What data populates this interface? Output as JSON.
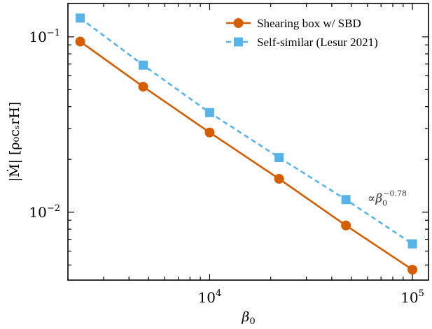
{
  "chart_data": {
    "type": "line",
    "xlabel": {
      "main": "β",
      "sub": "0"
    },
    "ylabel": "|Ṁ| [ρ₀cₛrH]",
    "xscale": "log",
    "yscale": "log",
    "xlim": [
      2000,
      120000
    ],
    "ylim": [
      0.0041,
      0.155
    ],
    "grid": false,
    "legend_position": "top-right",
    "x_ticks": [
      {
        "value": 10000,
        "base": "10",
        "exp": "4"
      },
      {
        "value": 100000,
        "base": "10",
        "exp": "5"
      }
    ],
    "y_ticks": [
      {
        "value": 0.01,
        "base": "10",
        "exp": "−2"
      },
      {
        "value": 0.1,
        "base": "10",
        "exp": "−1"
      }
    ],
    "series": [
      {
        "name": "Shearing box w/ SBD",
        "color": "#d55e00",
        "linestyle": "solid",
        "marker": "circle",
        "x": [
          2300,
          4700,
          10000,
          22000,
          47000,
          100000
        ],
        "y": [
          0.094,
          0.052,
          0.0285,
          0.0155,
          0.0084,
          0.0047
        ]
      },
      {
        "name": "Self-similar (Lesur 2021)",
        "color": "#56b4e9",
        "linestyle": "dashed",
        "marker": "square",
        "x": [
          2300,
          4700,
          10000,
          22000,
          47000,
          100000
        ],
        "y": [
          0.128,
          0.069,
          0.037,
          0.0205,
          0.0118,
          0.0066
        ]
      }
    ],
    "annotation": {
      "prefix": "∝",
      "base": "β",
      "sub": "0",
      "exp": "−0.78",
      "x": 60000,
      "y": 0.0115
    }
  }
}
